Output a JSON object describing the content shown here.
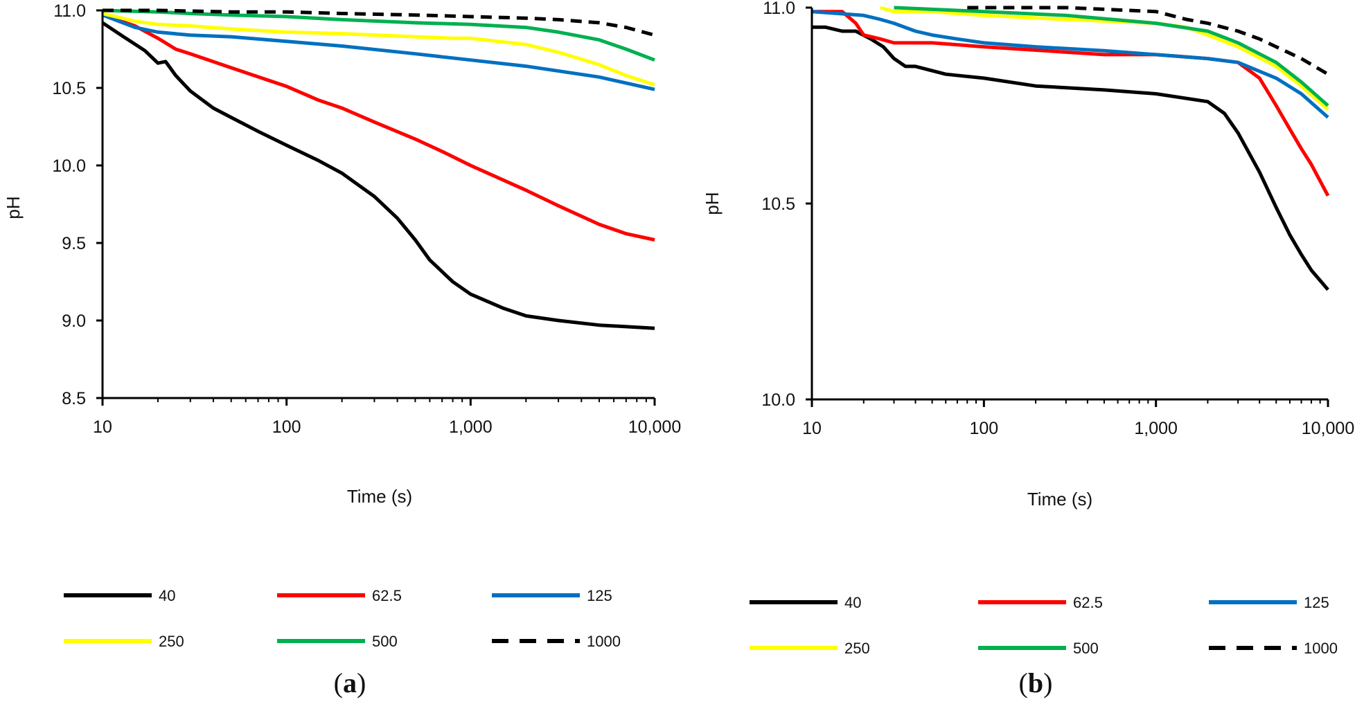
{
  "chart_data": [
    {
      "type": "line",
      "panel_label": "a",
      "xlabel": "Time (s)",
      "ylabel": "pH",
      "x_scale": "log",
      "xlim": [
        10,
        10000
      ],
      "ylim": [
        8.5,
        11.0
      ],
      "x_ticks": [
        10,
        100,
        1000,
        10000
      ],
      "x_tick_labels": [
        "10",
        "100",
        "1,000",
        "10,000"
      ],
      "y_ticks": [
        8.5,
        9.0,
        9.5,
        10.0,
        10.5,
        11.0
      ],
      "y_tick_labels": [
        "8.5",
        "9.0",
        "9.5",
        "10.0",
        "10.5",
        "11.0"
      ],
      "grid": false,
      "legend_position": "bottom",
      "series": [
        {
          "name": "40",
          "color": "#000000",
          "dash": "solid",
          "x": [
            10,
            13,
            17,
            20,
            22,
            25,
            30,
            40,
            50,
            70,
            100,
            150,
            200,
            300,
            400,
            500,
            600,
            800,
            1000,
            1500,
            2000,
            3000,
            5000,
            10000
          ],
          "y": [
            10.92,
            10.83,
            10.74,
            10.66,
            10.67,
            10.58,
            10.48,
            10.37,
            10.31,
            10.22,
            10.13,
            10.03,
            9.95,
            9.8,
            9.66,
            9.52,
            9.39,
            9.25,
            9.17,
            9.08,
            9.03,
            9.0,
            8.97,
            8.95
          ]
        },
        {
          "name": "62.5",
          "color": "#ff0000",
          "dash": "solid",
          "x": [
            10,
            15,
            20,
            25,
            30,
            50,
            100,
            150,
            200,
            300,
            500,
            700,
            1000,
            2000,
            3000,
            5000,
            7000,
            10000
          ],
          "y": [
            10.97,
            10.9,
            10.82,
            10.75,
            10.72,
            10.63,
            10.51,
            10.42,
            10.37,
            10.28,
            10.17,
            10.09,
            10.0,
            9.84,
            9.74,
            9.62,
            9.56,
            9.52
          ]
        },
        {
          "name": "125",
          "color": "#0070c0",
          "dash": "solid",
          "x": [
            10,
            15,
            20,
            30,
            50,
            100,
            200,
            500,
            1000,
            2000,
            5000,
            10000
          ],
          "y": [
            10.97,
            10.89,
            10.86,
            10.84,
            10.83,
            10.8,
            10.77,
            10.72,
            10.68,
            10.64,
            10.57,
            10.49
          ]
        },
        {
          "name": "250",
          "color": "#ffff00",
          "dash": "solid",
          "x": [
            10,
            15,
            20,
            30,
            50,
            100,
            200,
            500,
            800,
            1000,
            2000,
            3000,
            5000,
            7000,
            10000
          ],
          "y": [
            10.98,
            10.93,
            10.91,
            10.9,
            10.88,
            10.86,
            10.85,
            10.83,
            10.82,
            10.82,
            10.78,
            10.73,
            10.65,
            10.58,
            10.52
          ]
        },
        {
          "name": "500",
          "color": "#00b050",
          "dash": "solid",
          "x": [
            10,
            20,
            30,
            50,
            100,
            200,
            500,
            1000,
            2000,
            3000,
            5000,
            7000,
            10000
          ],
          "y": [
            11.0,
            10.99,
            10.98,
            10.97,
            10.96,
            10.94,
            10.92,
            10.91,
            10.89,
            10.86,
            10.81,
            10.75,
            10.68
          ]
        },
        {
          "name": "1000",
          "color": "#000000",
          "dash": "dashed",
          "x": [
            10,
            20,
            50,
            100,
            200,
            500,
            1000,
            2000,
            3000,
            5000,
            7000,
            10000
          ],
          "y": [
            11.0,
            11.0,
            10.99,
            10.99,
            10.98,
            10.97,
            10.96,
            10.95,
            10.94,
            10.92,
            10.89,
            10.84
          ]
        }
      ]
    },
    {
      "type": "line",
      "panel_label": "b",
      "xlabel": "Time (s)",
      "ylabel": "pH",
      "x_scale": "log",
      "xlim": [
        10,
        10000
      ],
      "ylim": [
        10.0,
        11.0
      ],
      "x_ticks": [
        10,
        100,
        1000,
        10000
      ],
      "x_tick_labels": [
        "10",
        "100",
        "1,000",
        "10,000"
      ],
      "y_ticks": [
        10.0,
        10.5,
        11.0
      ],
      "y_tick_labels": [
        "10.0",
        "10.5",
        "11.0"
      ],
      "grid": false,
      "legend_position": "bottom",
      "series": [
        {
          "name": "40",
          "color": "#000000",
          "dash": "solid",
          "x": [
            10,
            12,
            15,
            18,
            22,
            26,
            30,
            35,
            40,
            60,
            100,
            200,
            500,
            1000,
            2000,
            2500,
            3000,
            4000,
            5000,
            6000,
            7000,
            8000,
            10000
          ],
          "y": [
            10.95,
            10.95,
            10.94,
            10.94,
            10.92,
            10.9,
            10.87,
            10.85,
            10.85,
            10.83,
            10.82,
            10.8,
            10.79,
            10.78,
            10.76,
            10.73,
            10.68,
            10.58,
            10.49,
            10.42,
            10.37,
            10.33,
            10.28
          ]
        },
        {
          "name": "62.5",
          "color": "#ff0000",
          "dash": "solid",
          "x": [
            10,
            15,
            18,
            20,
            25,
            30,
            50,
            100,
            500,
            1000,
            2000,
            3000,
            4000,
            5000,
            6000,
            7000,
            8000,
            10000
          ],
          "y": [
            10.99,
            10.99,
            10.96,
            10.93,
            10.92,
            10.91,
            10.91,
            10.9,
            10.88,
            10.88,
            10.87,
            10.86,
            10.82,
            10.75,
            10.69,
            10.64,
            10.6,
            10.52
          ]
        },
        {
          "name": "125",
          "color": "#0070c0",
          "dash": "solid",
          "x": [
            10,
            20,
            25,
            30,
            40,
            50,
            70,
            100,
            200,
            500,
            1000,
            2000,
            3000,
            5000,
            7000,
            10000
          ],
          "y": [
            10.99,
            10.98,
            10.97,
            10.96,
            10.94,
            10.93,
            10.92,
            10.91,
            10.9,
            10.89,
            10.88,
            10.87,
            10.86,
            10.82,
            10.78,
            10.72
          ]
        },
        {
          "name": "250",
          "color": "#ffff00",
          "dash": "solid",
          "x": [
            25,
            30,
            50,
            100,
            300,
            1000,
            1500,
            2000,
            3000,
            5000,
            7000,
            10000
          ],
          "y": [
            11.0,
            10.99,
            10.99,
            10.98,
            10.97,
            10.96,
            10.95,
            10.93,
            10.9,
            10.85,
            10.8,
            10.74
          ]
        },
        {
          "name": "500",
          "color": "#00b050",
          "dash": "solid",
          "x": [
            30,
            100,
            300,
            1000,
            2000,
            3000,
            5000,
            7000,
            10000
          ],
          "y": [
            11.0,
            10.99,
            10.98,
            10.96,
            10.94,
            10.91,
            10.86,
            10.81,
            10.75
          ]
        },
        {
          "name": "1000",
          "color": "#000000",
          "dash": "dashed",
          "x": [
            80,
            100,
            300,
            1000,
            1500,
            2000,
            3000,
            4000,
            5000,
            7000,
            10000
          ],
          "y": [
            11.0,
            11.0,
            11.0,
            10.99,
            10.97,
            10.96,
            10.94,
            10.92,
            10.9,
            10.87,
            10.83
          ]
        }
      ]
    }
  ]
}
